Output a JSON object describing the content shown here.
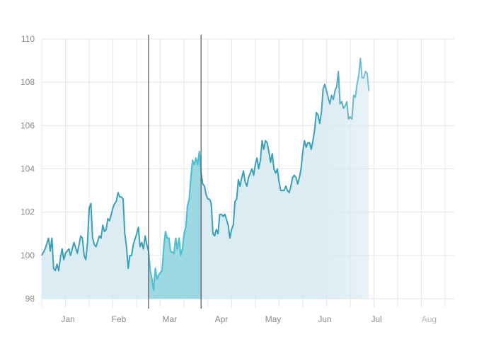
{
  "chart_data": {
    "type": "area",
    "x_axis": {
      "type": "time",
      "start": "2012-01-01",
      "end": "2012-08-31",
      "tick_labels": [
        "Jan",
        "Feb",
        "Mar",
        "Apr",
        "May",
        "Jun",
        "Jul",
        "Aug"
      ]
    },
    "y_axis": {
      "min": 98,
      "max": 110,
      "tick_labels": [
        "98",
        "100",
        "102",
        "104",
        "106",
        "108",
        "110"
      ]
    },
    "grid": true,
    "selection": {
      "start": "2012-03-04",
      "end": "2012-04-04"
    },
    "colors": {
      "line": "#3aa0b8",
      "area": "#d6e9f1",
      "selection_fill": "#8fd5e0",
      "selection_line": "#4fc3d6",
      "brush_line": "#555555",
      "grid": "#e6e6e6",
      "tick_text": "#8a8a8a"
    },
    "series": [
      {
        "values": [
          [
            "2012-01-01",
            100.0
          ],
          [
            "2012-01-03",
            100.3
          ],
          [
            "2012-01-05",
            100.8
          ],
          [
            "2012-01-06",
            100.2
          ],
          [
            "2012-01-07",
            100.8
          ],
          [
            "2012-01-08",
            99.4
          ],
          [
            "2012-01-09",
            99.3
          ],
          [
            "2012-01-10",
            99.6
          ],
          [
            "2012-01-11",
            99.3
          ],
          [
            "2012-01-12",
            99.9
          ],
          [
            "2012-01-13",
            100.3
          ],
          [
            "2012-01-14",
            99.8
          ],
          [
            "2012-01-15",
            100.1
          ],
          [
            "2012-01-17",
            100.3
          ],
          [
            "2012-01-18",
            100.0
          ],
          [
            "2012-01-19",
            100.3
          ],
          [
            "2012-01-20",
            100.6
          ],
          [
            "2012-01-22",
            100.1
          ],
          [
            "2012-01-24",
            100.9
          ],
          [
            "2012-01-25",
            100.8
          ],
          [
            "2012-01-26",
            100.0
          ],
          [
            "2012-01-27",
            99.8
          ],
          [
            "2012-01-28",
            100.6
          ],
          [
            "2012-01-29",
            102.2
          ],
          [
            "2012-01-30",
            102.4
          ],
          [
            "2012-01-31",
            100.8
          ],
          [
            "2012-02-01",
            100.5
          ],
          [
            "2012-02-02",
            100.4
          ],
          [
            "2012-02-04",
            100.9
          ],
          [
            "2012-02-05",
            100.8
          ],
          [
            "2012-02-06",
            101.4
          ],
          [
            "2012-02-07",
            101.1
          ],
          [
            "2012-02-08",
            101.2
          ],
          [
            "2012-02-09",
            101.7
          ],
          [
            "2012-02-10",
            101.6
          ],
          [
            "2012-02-11",
            101.9
          ],
          [
            "2012-02-12",
            102.2
          ],
          [
            "2012-02-13",
            102.4
          ],
          [
            "2012-02-14",
            102.5
          ],
          [
            "2012-02-15",
            102.9
          ],
          [
            "2012-02-16",
            102.7
          ],
          [
            "2012-02-17",
            102.7
          ],
          [
            "2012-02-18",
            102.6
          ],
          [
            "2012-02-19",
            101.0
          ],
          [
            "2012-02-20",
            100.4
          ],
          [
            "2012-02-21",
            99.4
          ],
          [
            "2012-02-22",
            100.0
          ],
          [
            "2012-02-23",
            100.0
          ],
          [
            "2012-02-24",
            100.5
          ],
          [
            "2012-02-26",
            101.0
          ],
          [
            "2012-02-27",
            101.3
          ],
          [
            "2012-02-28",
            100.4
          ],
          [
            "2012-02-29",
            100.6
          ],
          [
            "2012-03-01",
            100.3
          ],
          [
            "2012-03-02",
            100.9
          ],
          [
            "2012-03-03",
            100.5
          ],
          [
            "2012-03-04",
            100.2
          ],
          [
            "2012-03-05",
            99.3
          ],
          [
            "2012-03-06",
            98.9
          ],
          [
            "2012-03-07",
            98.4
          ],
          [
            "2012-03-08",
            99.4
          ],
          [
            "2012-03-09",
            98.9
          ],
          [
            "2012-03-10",
            99.1
          ],
          [
            "2012-03-12",
            99.3
          ],
          [
            "2012-03-13",
            100.4
          ],
          [
            "2012-03-14",
            101.1
          ],
          [
            "2012-03-15",
            100.8
          ],
          [
            "2012-03-16",
            100.8
          ],
          [
            "2012-03-17",
            100.2
          ],
          [
            "2012-03-19",
            100.1
          ],
          [
            "2012-03-20",
            100.8
          ],
          [
            "2012-03-21",
            100.3
          ],
          [
            "2012-03-22",
            100.8
          ],
          [
            "2012-03-23",
            100.0
          ],
          [
            "2012-03-24",
            100.3
          ],
          [
            "2012-03-25",
            101.0
          ],
          [
            "2012-03-26",
            101.3
          ],
          [
            "2012-03-27",
            102.3
          ],
          [
            "2012-03-28",
            102.6
          ],
          [
            "2012-03-29",
            103.6
          ],
          [
            "2012-03-30",
            104.4
          ],
          [
            "2012-03-31",
            104.2
          ],
          [
            "2012-04-01",
            104.5
          ],
          [
            "2012-04-02",
            104.2
          ],
          [
            "2012-04-03",
            104.8
          ],
          [
            "2012-04-04",
            103.8
          ],
          [
            "2012-04-05",
            103.3
          ],
          [
            "2012-04-06",
            103.2
          ],
          [
            "2012-04-07",
            102.8
          ],
          [
            "2012-04-08",
            102.6
          ],
          [
            "2012-04-09",
            102.6
          ],
          [
            "2012-04-10",
            102.4
          ],
          [
            "2012-04-11",
            101.0
          ],
          [
            "2012-04-12",
            100.9
          ],
          [
            "2012-04-13",
            101.2
          ],
          [
            "2012-04-14",
            101.0
          ],
          [
            "2012-04-15",
            101.9
          ],
          [
            "2012-04-16",
            101.9
          ],
          [
            "2012-04-17",
            101.8
          ],
          [
            "2012-04-18",
            101.9
          ],
          [
            "2012-04-20",
            101.4
          ],
          [
            "2012-04-21",
            100.8
          ],
          [
            "2012-04-22",
            101.2
          ],
          [
            "2012-04-23",
            101.4
          ],
          [
            "2012-04-24",
            102.5
          ],
          [
            "2012-04-25",
            102.6
          ],
          [
            "2012-04-26",
            103.5
          ],
          [
            "2012-04-27",
            103.2
          ],
          [
            "2012-04-28",
            103.6
          ],
          [
            "2012-04-29",
            103.9
          ],
          [
            "2012-04-30",
            103.4
          ],
          [
            "2012-05-01",
            103.2
          ],
          [
            "2012-05-02",
            103.6
          ],
          [
            "2012-05-03",
            103.8
          ],
          [
            "2012-05-04",
            104.0
          ],
          [
            "2012-05-05",
            103.7
          ],
          [
            "2012-05-06",
            104.2
          ],
          [
            "2012-05-07",
            104.5
          ],
          [
            "2012-05-08",
            104.0
          ],
          [
            "2012-05-09",
            104.4
          ],
          [
            "2012-05-10",
            105.3
          ],
          [
            "2012-05-11",
            104.9
          ],
          [
            "2012-05-12",
            105.3
          ],
          [
            "2012-05-13",
            105.2
          ],
          [
            "2012-05-14",
            104.8
          ],
          [
            "2012-05-15",
            104.3
          ],
          [
            "2012-05-16",
            104.7
          ],
          [
            "2012-05-17",
            104.0
          ],
          [
            "2012-05-18",
            103.8
          ],
          [
            "2012-05-19",
            104.0
          ],
          [
            "2012-05-20",
            103.4
          ],
          [
            "2012-05-21",
            103.0
          ],
          [
            "2012-05-22",
            103.0
          ],
          [
            "2012-05-23",
            103.0
          ],
          [
            "2012-05-24",
            103.2
          ],
          [
            "2012-05-25",
            103.0
          ],
          [
            "2012-05-26",
            102.9
          ],
          [
            "2012-05-27",
            103.2
          ],
          [
            "2012-05-28",
            103.6
          ],
          [
            "2012-05-29",
            103.7
          ],
          [
            "2012-05-30",
            103.6
          ],
          [
            "2012-05-31",
            103.3
          ],
          [
            "2012-06-01",
            103.6
          ],
          [
            "2012-06-02",
            104.0
          ],
          [
            "2012-06-03",
            104.8
          ],
          [
            "2012-06-04",
            105.3
          ],
          [
            "2012-06-05",
            105.0
          ],
          [
            "2012-06-06",
            105.2
          ],
          [
            "2012-06-07",
            105.2
          ],
          [
            "2012-06-08",
            104.9
          ],
          [
            "2012-06-09",
            105.3
          ],
          [
            "2012-06-10",
            105.8
          ],
          [
            "2012-06-11",
            106.6
          ],
          [
            "2012-06-12",
            106.5
          ],
          [
            "2012-06-13",
            106.1
          ],
          [
            "2012-06-14",
            106.6
          ],
          [
            "2012-06-15",
            107.7
          ],
          [
            "2012-06-16",
            107.9
          ],
          [
            "2012-06-17",
            107.6
          ],
          [
            "2012-06-18",
            107.3
          ],
          [
            "2012-06-19",
            107.0
          ],
          [
            "2012-06-20",
            107.4
          ],
          [
            "2012-06-21",
            107.2
          ],
          [
            "2012-06-22",
            107.6
          ],
          [
            "2012-06-23",
            107.8
          ],
          [
            "2012-06-24",
            108.5
          ],
          [
            "2012-06-25",
            107.0
          ],
          [
            "2012-06-26",
            107.1
          ],
          [
            "2012-06-27",
            106.8
          ],
          [
            "2012-06-28",
            106.9
          ],
          [
            "2012-06-29",
            107.1
          ],
          [
            "2012-06-30",
            106.3
          ],
          [
            "2012-07-01",
            106.4
          ],
          [
            "2012-07-02",
            106.3
          ],
          [
            "2012-07-03",
            107.4
          ],
          [
            "2012-07-04",
            107.3
          ],
          [
            "2012-07-05",
            107.9
          ],
          [
            "2012-07-06",
            108.3
          ],
          [
            "2012-07-07",
            109.1
          ],
          [
            "2012-07-08",
            108.2
          ],
          [
            "2012-07-09",
            108.2
          ],
          [
            "2012-07-10",
            108.5
          ],
          [
            "2012-07-11",
            108.4
          ],
          [
            "2012-07-12",
            107.6
          ]
        ]
      }
    ]
  }
}
